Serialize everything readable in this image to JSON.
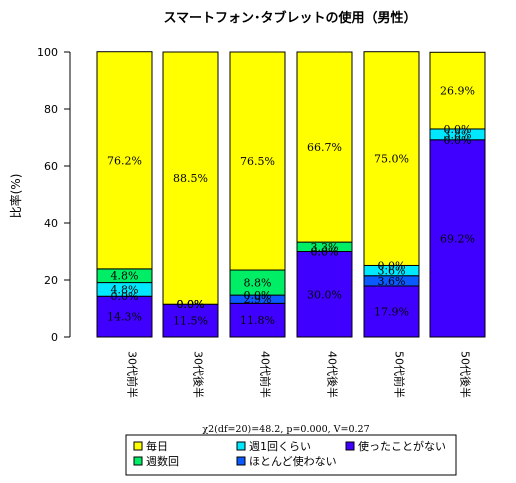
{
  "chart_data": {
    "type": "bar",
    "stacked": true,
    "title": "スマートフォン･タブレットの使用（男性）",
    "ylabel": "比率(%)",
    "xlabel": "",
    "ylim": [
      0,
      100
    ],
    "yticks": [
      0,
      20,
      40,
      60,
      80,
      100
    ],
    "categories": [
      "30代前半",
      "30代後半",
      "40代前半",
      "40代後半",
      "50代前半",
      "50代後半"
    ],
    "series": [
      {
        "name": "使ったことがない",
        "color": "#4000ff",
        "values": [
          14.3,
          11.5,
          11.8,
          30.0,
          17.9,
          69.2
        ],
        "labels": [
          "14.3%",
          "11.5%",
          "11.8%",
          "30.0%",
          "17.9%",
          "69.2%"
        ]
      },
      {
        "name": "ほとんど使わない",
        "color": "#0a5aff",
        "values": [
          0.0,
          0.0,
          2.9,
          0.0,
          3.6,
          0.0
        ],
        "labels": [
          "0.0%",
          "0.0%",
          "2.9%",
          "0.0%",
          "3.6%",
          "0.0%"
        ]
      },
      {
        "name": "週1回くらい",
        "color": "#00e8ff",
        "values": [
          4.8,
          0.0,
          0.0,
          0.0,
          3.6,
          3.8
        ],
        "labels": [
          "4.8%",
          "0.0%",
          "0.0%",
          "0.0%",
          "3.6%",
          "3.8%"
        ]
      },
      {
        "name": "週数回",
        "color": "#00ee66",
        "values": [
          4.8,
          0.0,
          8.8,
          3.3,
          0.0,
          0.0
        ],
        "labels": [
          "4.8%",
          "0.0%",
          "8.8%",
          "3.3%",
          "0.0%",
          "0.0%"
        ]
      },
      {
        "name": "毎日",
        "color": "#ffff00",
        "values": [
          76.2,
          88.5,
          76.5,
          66.7,
          75.0,
          26.9
        ],
        "labels": [
          "76.2%",
          "88.5%",
          "76.5%",
          "66.7%",
          "75.0%",
          "26.9%"
        ]
      }
    ],
    "stat_text": "χ2(df=20)=48.2, p=0.000, V=0.27",
    "legend": {
      "position": "bottom",
      "items": [
        {
          "name": "毎日",
          "color": "#ffff00"
        },
        {
          "name": "週数回",
          "color": "#00ee66"
        },
        {
          "name": "週1回くらい",
          "color": "#00e8ff"
        },
        {
          "name": "ほとんど使わない",
          "color": "#0a5aff"
        },
        {
          "name": "使ったことがない",
          "color": "#4000ff"
        }
      ]
    }
  }
}
